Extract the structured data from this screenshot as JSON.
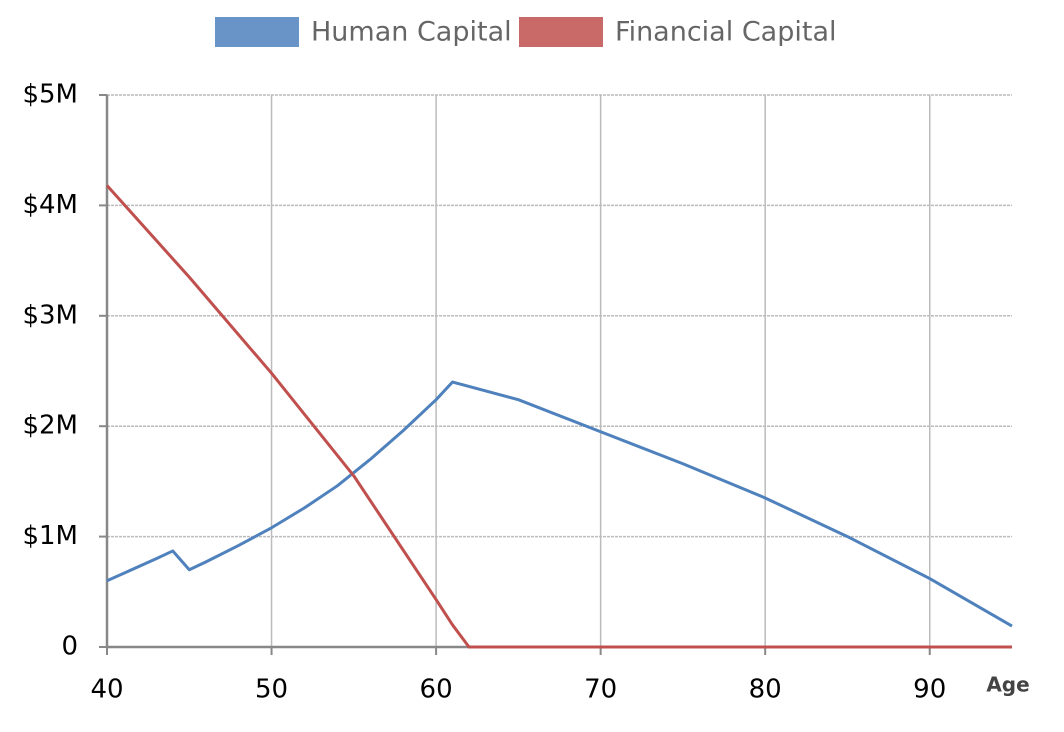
{
  "chart_data": {
    "type": "line",
    "x_label": "Age",
    "xlim": [
      40,
      95
    ],
    "xticks": [
      40,
      50,
      60,
      70,
      80,
      90
    ],
    "ylim": [
      0,
      5000000
    ],
    "yticks": [
      0,
      {
        "value": 1000000,
        "label": "$1M"
      },
      {
        "value": 2000000,
        "label": "$2M"
      },
      {
        "value": 3000000,
        "label": "$3M"
      },
      {
        "value": 4000000,
        "label": "$4M"
      },
      {
        "value": 5000000,
        "label": "$5M"
      }
    ],
    "grid": true,
    "legend": "top",
    "series": [
      {
        "name": "Human Capital",
        "color": "#4f81bd",
        "x": [
          40,
          43,
          44,
          45,
          46,
          48,
          50,
          52,
          54,
          56,
          58,
          60,
          61,
          62,
          65,
          70,
          75,
          80,
          85,
          90,
          95
        ],
        "values": [
          600000,
          800000,
          870000,
          700000,
          770000,
          920000,
          1080000,
          1260000,
          1460000,
          1700000,
          1960000,
          2240000,
          2400000,
          2360000,
          2240000,
          1950000,
          1660000,
          1350000,
          1000000,
          620000,
          190000
        ]
      },
      {
        "name": "Financial Capital",
        "color": "#c0504d",
        "x": [
          40,
          45,
          50,
          55,
          60,
          61,
          62,
          70,
          80,
          90,
          95
        ],
        "values": [
          4180000,
          3350000,
          2480000,
          1550000,
          430000,
          200000,
          0,
          0,
          0,
          0,
          0
        ]
      }
    ]
  }
}
